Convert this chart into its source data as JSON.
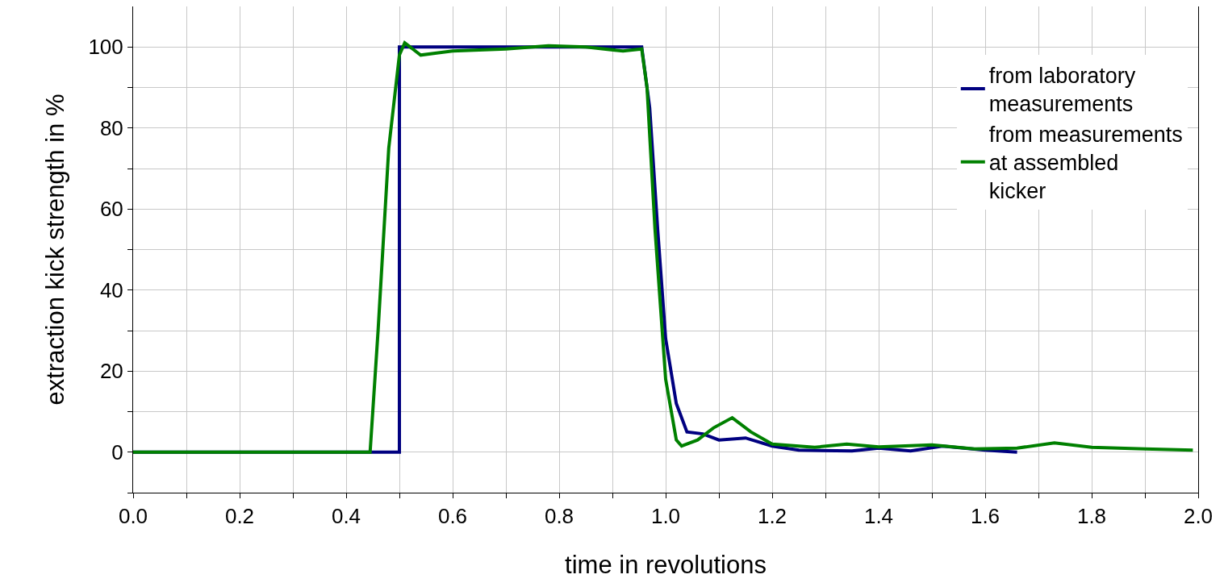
{
  "chart_data": {
    "type": "line",
    "xlabel": "time in revolutions",
    "ylabel": "extraction kick strength in %",
    "xlim": [
      0,
      2
    ],
    "ylim": [
      -10,
      110
    ],
    "xticks": [
      {
        "value": 0,
        "label": "0.0"
      },
      {
        "value": 0.1,
        "label": null
      },
      {
        "value": 0.2,
        "label": "0.2"
      },
      {
        "value": 0.3,
        "label": null
      },
      {
        "value": 0.4,
        "label": "0.4"
      },
      {
        "value": 0.5,
        "label": null
      },
      {
        "value": 0.6,
        "label": "0.6"
      },
      {
        "value": 0.7,
        "label": null
      },
      {
        "value": 0.8,
        "label": "0.8"
      },
      {
        "value": 0.9,
        "label": null
      },
      {
        "value": 1,
        "label": "1.0"
      },
      {
        "value": 1.1,
        "label": null
      },
      {
        "value": 1.2,
        "label": "1.2"
      },
      {
        "value": 1.3,
        "label": null
      },
      {
        "value": 1.4,
        "label": "1.4"
      },
      {
        "value": 1.5,
        "label": null
      },
      {
        "value": 1.6,
        "label": "1.6"
      },
      {
        "value": 1.7,
        "label": null
      },
      {
        "value": 1.8,
        "label": "1.8"
      },
      {
        "value": 1.9,
        "label": null
      },
      {
        "value": 2,
        "label": "2.0"
      }
    ],
    "yticks": [
      {
        "value": -10,
        "label": null
      },
      0,
      {
        "value": 10,
        "label": null
      },
      20,
      {
        "value": 30,
        "label": null
      },
      40,
      {
        "value": 50,
        "label": null
      },
      60,
      {
        "value": 70,
        "label": null
      },
      80,
      {
        "value": 90,
        "label": null
      },
      100
    ],
    "grid": true,
    "legend": "top right",
    "marker": "none",
    "line_style": "solid",
    "series": [
      {
        "name": "from laboratory measurements",
        "color": "#000080",
        "x": [
          0,
          0.5,
          0.5,
          0.955,
          0.97,
          0.985,
          1.0,
          1.02,
          1.04,
          1.07,
          1.1,
          1.15,
          1.2,
          1.25,
          1.35,
          1.4,
          1.46,
          1.52,
          1.6,
          1.66
        ],
        "values": [
          0,
          0,
          100,
          100,
          85,
          55,
          28,
          12,
          5,
          4.5,
          3,
          3.5,
          1.5,
          0.5,
          0.3,
          1,
          0.3,
          1.5,
          0.5,
          0
        ]
      },
      {
        "name": "from measurements at assembled kicker",
        "color": "#008000",
        "x": [
          0,
          0.445,
          0.46,
          0.48,
          0.5,
          0.51,
          0.525,
          0.54,
          0.57,
          0.6,
          0.7,
          0.78,
          0.85,
          0.92,
          0.955,
          0.965,
          0.98,
          1.0,
          1.02,
          1.03,
          1.06,
          1.09,
          1.125,
          1.16,
          1.2,
          1.28,
          1.34,
          1.4,
          1.5,
          1.58,
          1.66,
          1.73,
          1.8,
          1.9,
          1.99
        ],
        "values": [
          0,
          0,
          30,
          75,
          98,
          101,
          99.5,
          98,
          98.5,
          99,
          99.5,
          100.3,
          100,
          99,
          99.5,
          90,
          55,
          18,
          3,
          1.5,
          3,
          6,
          8.5,
          5,
          2,
          1.2,
          2,
          1.3,
          1.8,
          0.8,
          1,
          2.3,
          1.2,
          0.8,
          0.5
        ]
      }
    ]
  }
}
